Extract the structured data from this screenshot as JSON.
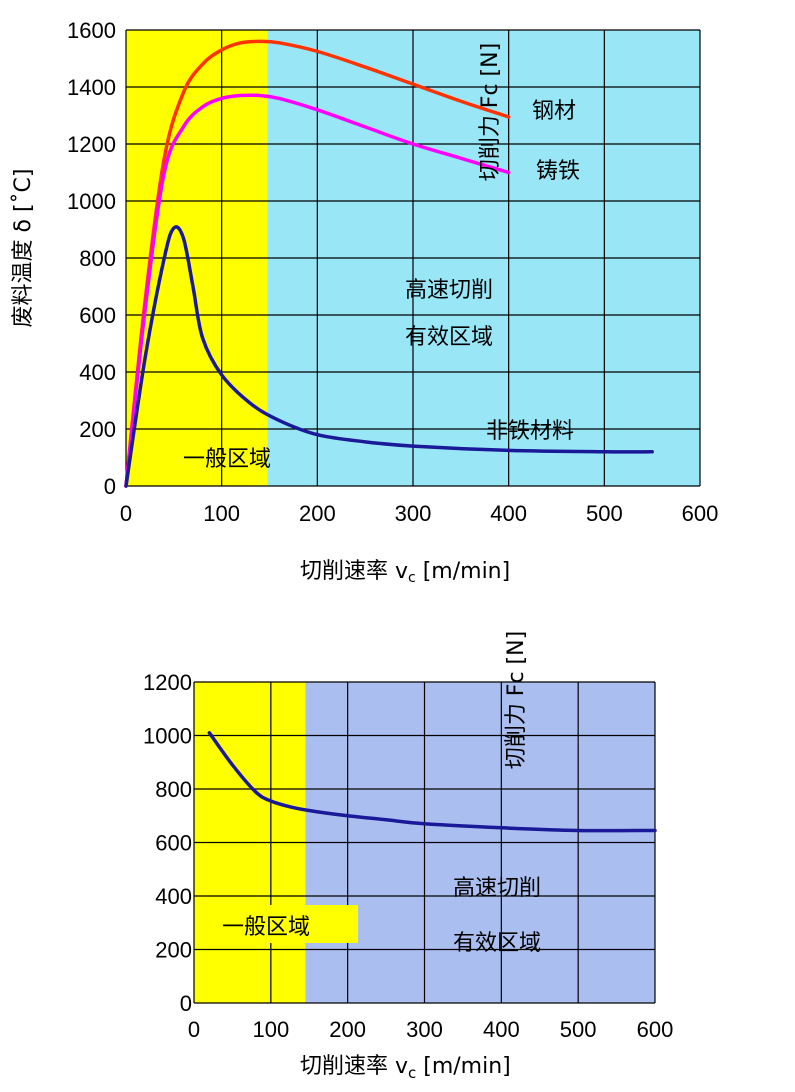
{
  "chart_data": [
    {
      "type": "line",
      "xlabel": "切削速率 vc [m/min]",
      "xlabel_main": "切削速率 v",
      "xlabel_sub": "c",
      "xlabel_unit": " [m/min]",
      "ylabel": "废料温度 δ [˚C]",
      "ylim": [
        0,
        1600
      ],
      "xlim": [
        0,
        600
      ],
      "x_ticks": [
        "0",
        "100",
        "200",
        "300",
        "400",
        "500",
        "600"
      ],
      "y_ticks": [
        "0",
        "200",
        "400",
        "600",
        "800",
        "1000",
        "1200",
        "1400",
        "1600"
      ],
      "grid": true,
      "regions": [
        {
          "x0": 0,
          "x1": 148,
          "color": "#ffff00"
        },
        {
          "x0": 148,
          "x1": 600,
          "color": "#99e6f7"
        }
      ],
      "region_labels": [
        "一般区域",
        "高速切削",
        "有效区域"
      ],
      "secondary_axis_label": "切削力 Fc [N]",
      "series": [
        {
          "name": "钢材",
          "color": "#ff3300",
          "x": [
            0,
            20,
            40,
            60,
            80,
            100,
            120,
            140,
            160,
            200,
            250,
            300,
            350,
            400
          ],
          "y": [
            0,
            650,
            1150,
            1380,
            1480,
            1530,
            1555,
            1560,
            1555,
            1525,
            1470,
            1410,
            1350,
            1295
          ]
        },
        {
          "name": "铸铁",
          "color": "#ff00ff",
          "x": [
            0,
            20,
            40,
            60,
            80,
            100,
            120,
            140,
            160,
            200,
            250,
            300,
            350,
            400
          ],
          "y": [
            0,
            620,
            1100,
            1260,
            1330,
            1360,
            1370,
            1370,
            1360,
            1320,
            1260,
            1200,
            1150,
            1100
          ]
        },
        {
          "name": "非铁材料",
          "color": "#1a1a99",
          "x": [
            0,
            20,
            40,
            50,
            60,
            70,
            80,
            100,
            130,
            160,
            200,
            250,
            300,
            400,
            500,
            550
          ],
          "y": [
            0,
            450,
            800,
            905,
            870,
            700,
            520,
            390,
            290,
            230,
            180,
            155,
            140,
            125,
            120,
            120
          ]
        }
      ]
    },
    {
      "type": "line",
      "xlabel": "切削速率 vc [m/min]",
      "xlabel_main": "切削速率 v",
      "xlabel_sub": "c",
      "xlabel_unit": " [m/min]",
      "ylabel": "切削力 Fc [N]",
      "ylim": [
        0,
        1200
      ],
      "xlim": [
        0,
        600
      ],
      "x_ticks": [
        "0",
        "100",
        "200",
        "300",
        "400",
        "500",
        "600"
      ],
      "y_ticks": [
        "0",
        "200",
        "400",
        "600",
        "800",
        "1000",
        "1200"
      ],
      "grid": true,
      "regions": [
        {
          "x0": 0,
          "x1": 145,
          "color": "#ffff00"
        },
        {
          "x0": 145,
          "x1": 600,
          "color": "#aabff0"
        }
      ],
      "region_labels": [
        "一般区域",
        "高速切削",
        "有效区域"
      ],
      "series": [
        {
          "color": "#1a1a99",
          "x": [
            20,
            50,
            80,
            100,
            130,
            160,
            200,
            250,
            300,
            400,
            500,
            600
          ],
          "y": [
            1010,
            890,
            790,
            755,
            730,
            715,
            700,
            685,
            670,
            655,
            645,
            645
          ]
        }
      ]
    }
  ]
}
